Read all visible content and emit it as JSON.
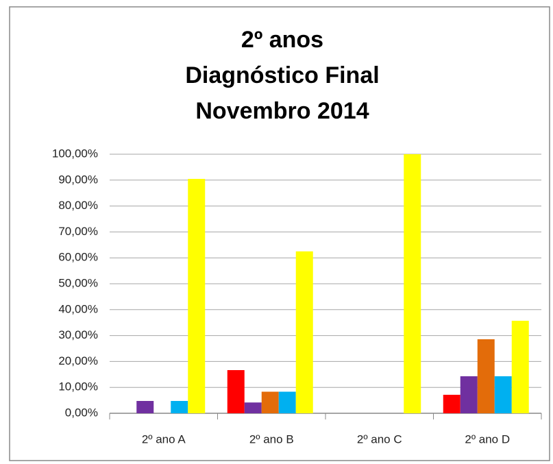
{
  "chart_data": {
    "type": "bar",
    "title": [
      "2º anos",
      "Diagnóstico Final",
      "Novembro 2014"
    ],
    "categories": [
      "2º ano A",
      "2º ano B",
      "2º ano C",
      "2º ano D"
    ],
    "series": [
      {
        "color": "#ff0000",
        "values": [
          0,
          16.67,
          0,
          7.14
        ]
      },
      {
        "color": "#7030a0",
        "values": [
          4.76,
          4.17,
          0,
          14.29
        ]
      },
      {
        "color": "#e36c0a",
        "values": [
          0,
          8.33,
          0,
          28.57
        ]
      },
      {
        "color": "#00b0f0",
        "values": [
          4.76,
          8.33,
          0,
          14.29
        ]
      },
      {
        "color": "#ffff00",
        "values": [
          90.48,
          62.5,
          100,
          35.71
        ]
      }
    ],
    "ylim": [
      0,
      100
    ],
    "yticks": [
      {
        "value": 0,
        "label": "0,00%"
      },
      {
        "value": 10,
        "label": "10,00%"
      },
      {
        "value": 20,
        "label": "20,00%"
      },
      {
        "value": 30,
        "label": "30,00%"
      },
      {
        "value": 40,
        "label": "40,00%"
      },
      {
        "value": 50,
        "label": "50,00%"
      },
      {
        "value": 60,
        "label": "60,00%"
      },
      {
        "value": 70,
        "label": "70,00%"
      },
      {
        "value": 80,
        "label": "80,00%"
      },
      {
        "value": 90,
        "label": "90,00%"
      },
      {
        "value": 100,
        "label": "100,00%"
      }
    ],
    "grid": true
  }
}
